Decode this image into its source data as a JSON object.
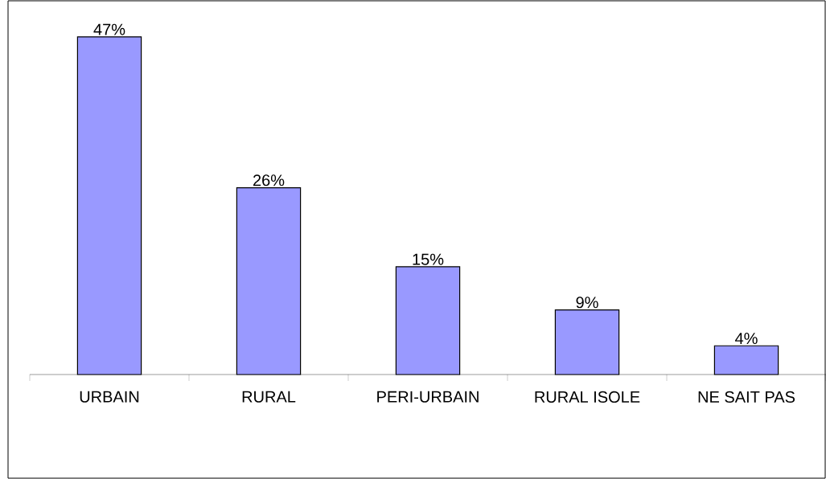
{
  "chart_data": {
    "type": "bar",
    "categories": [
      "URBAIN",
      "RURAL",
      "PERI-URBAIN",
      "RURAL ISOLE",
      "NE SAIT PAS"
    ],
    "values": [
      47,
      26,
      15,
      9,
      4
    ],
    "value_labels": [
      "47%",
      "26%",
      "15%",
      "9%",
      "4%"
    ],
    "color": "#9999ff"
  }
}
